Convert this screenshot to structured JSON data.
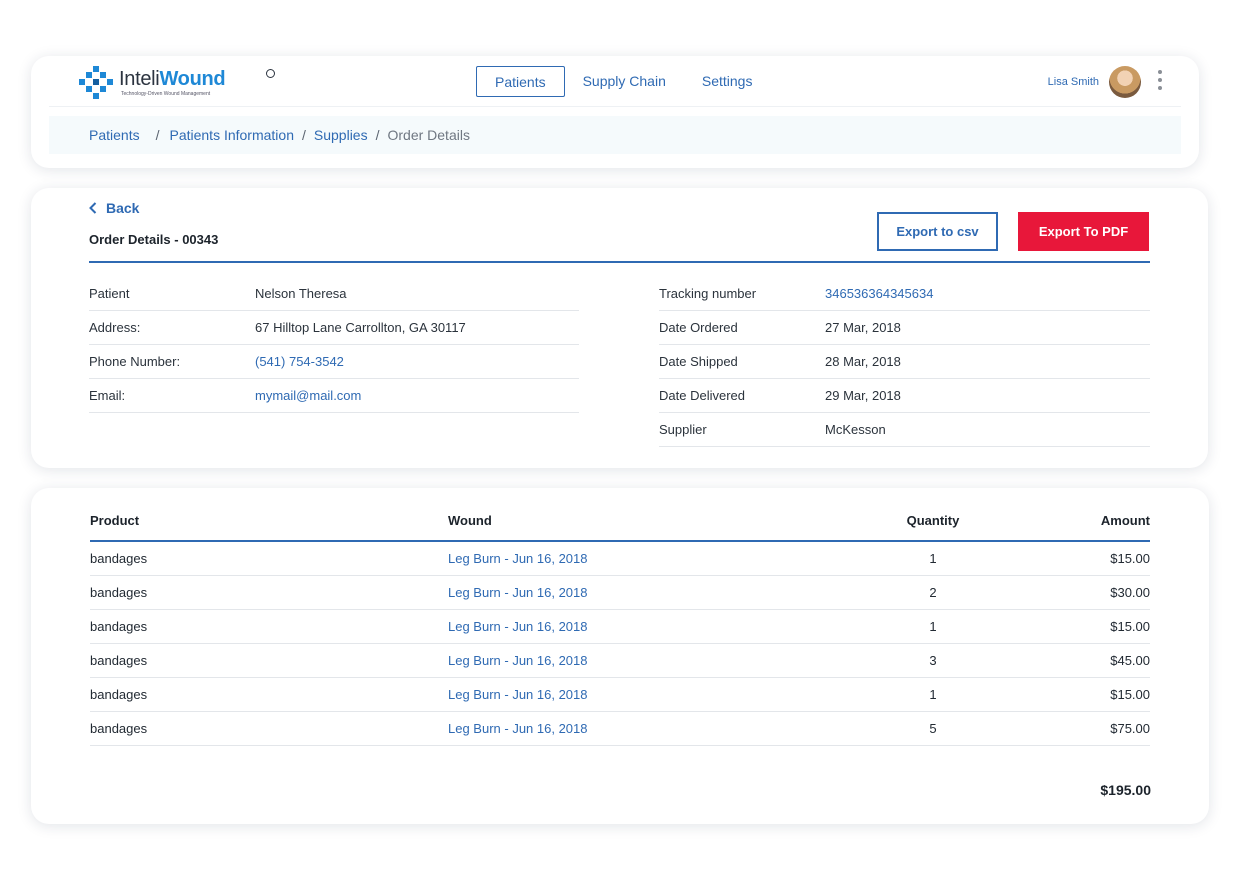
{
  "header": {
    "logo": {
      "name_part1": "Inteli",
      "name_part2": "Wound",
      "tagline": "Technology-Driven Wound Management"
    },
    "nav": [
      {
        "label": "Patients",
        "active": true
      },
      {
        "label": "Supply Chain",
        "active": false
      },
      {
        "label": "Settings",
        "active": false
      }
    ],
    "user": {
      "name": "Lisa Smith"
    },
    "breadcrumb": {
      "items": [
        "Patients",
        "Patients Information",
        "Supplies"
      ],
      "current": "Order Details"
    }
  },
  "order": {
    "back_label": "Back",
    "title": "Order Details - 00343",
    "export_csv_label": "Export to csv",
    "export_pdf_label": "Export To PDF",
    "left": [
      {
        "label": "Patient",
        "value": "Nelson Theresa",
        "link": false
      },
      {
        "label": "Address:",
        "value": "67 Hilltop Lane Carrollton, GA 30117",
        "link": false
      },
      {
        "label": "Phone Number:",
        "value": "(541) 754-3542",
        "link": true
      },
      {
        "label": "Email:",
        "value": "mymail@mail.com",
        "link": true
      }
    ],
    "right": [
      {
        "label": "Tracking number",
        "value": "346536364345634",
        "link": true
      },
      {
        "label": "Date Ordered",
        "value": "27 Mar, 2018",
        "link": false
      },
      {
        "label": "Date Shipped",
        "value": "28 Mar, 2018",
        "link": false
      },
      {
        "label": "Date Delivered",
        "value": "29 Mar, 2018",
        "link": false
      },
      {
        "label": "Supplier",
        "value": "McKesson",
        "link": false
      }
    ]
  },
  "products": {
    "columns": {
      "product": "Product",
      "wound": "Wound",
      "quantity": "Quantity",
      "amount": "Amount"
    },
    "rows": [
      {
        "product": "bandages",
        "wound": "Leg Burn - Jun 16, 2018",
        "quantity": "1",
        "amount": "$15.00"
      },
      {
        "product": "bandages",
        "wound": "Leg Burn - Jun 16, 2018",
        "quantity": "2",
        "amount": "$30.00"
      },
      {
        "product": "bandages",
        "wound": "Leg Burn - Jun 16, 2018",
        "quantity": "1",
        "amount": "$15.00"
      },
      {
        "product": "bandages",
        "wound": "Leg Burn - Jun 16, 2018",
        "quantity": "3",
        "amount": "$45.00"
      },
      {
        "product": "bandages",
        "wound": "Leg Burn - Jun 16, 2018",
        "quantity": "1",
        "amount": "$15.00"
      },
      {
        "product": "bandages",
        "wound": "Leg Burn - Jun 16, 2018",
        "quantity": "5",
        "amount": "$75.00"
      }
    ],
    "total": "$195.00"
  },
  "colors": {
    "accent": "#2f6ab3",
    "danger": "#e8173a",
    "logo_blue": "#1e88d6"
  },
  "icons": [
    "logo-mark-icon",
    "avatar",
    "kebab-menu-icon",
    "chevron-left-icon"
  ]
}
